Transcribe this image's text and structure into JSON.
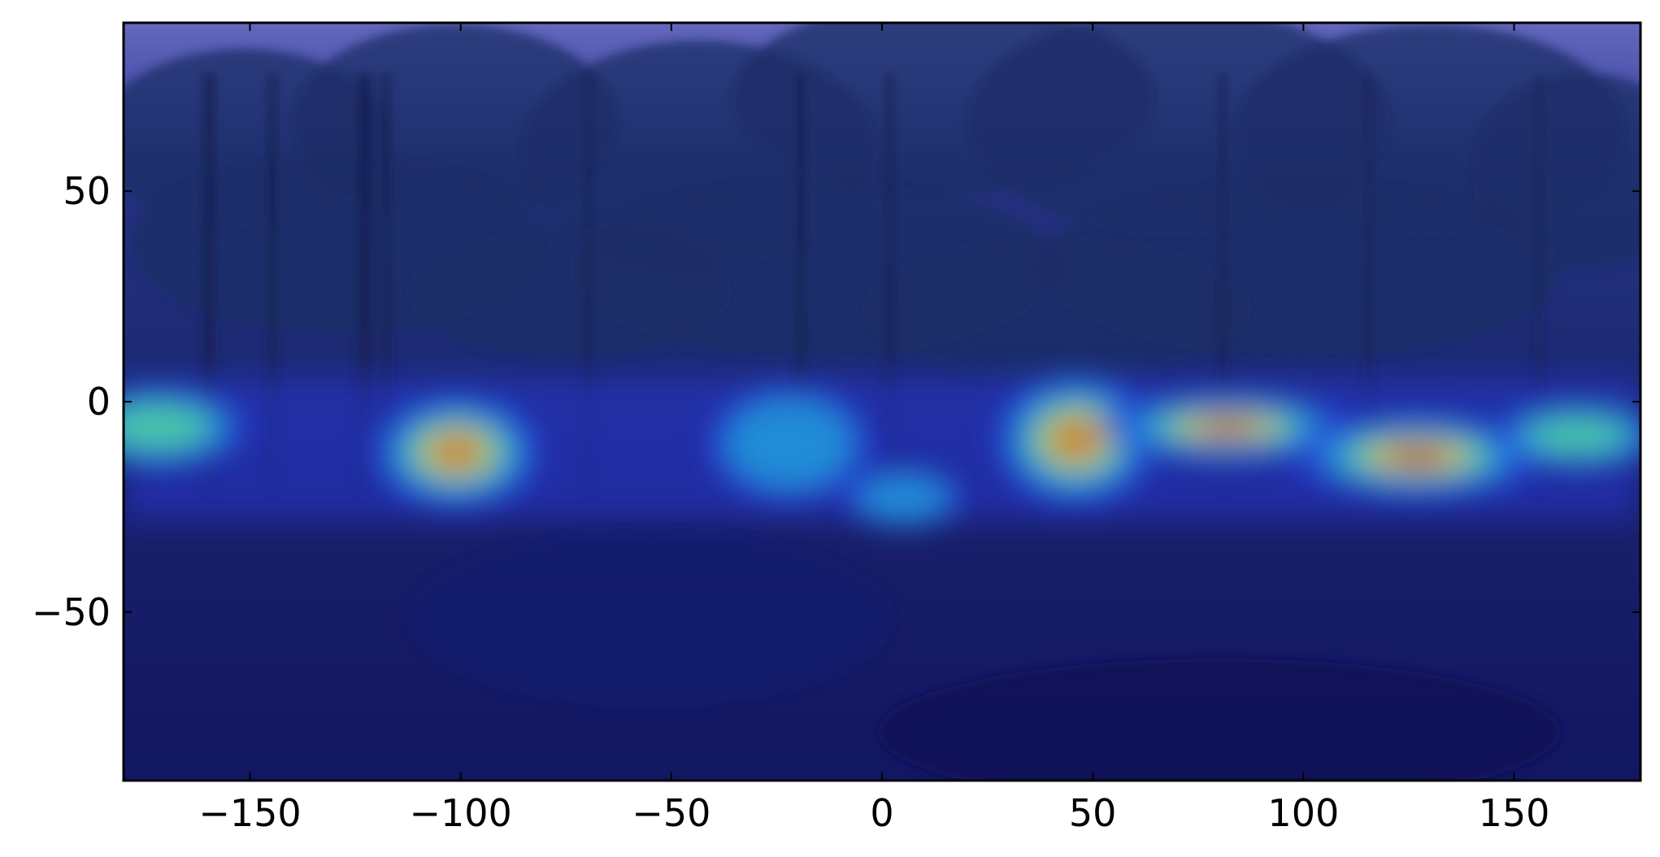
{
  "chart_data": {
    "type": "heatmap",
    "title": "",
    "xlabel": "",
    "ylabel": "",
    "xlim": [
      -180,
      180
    ],
    "ylim": [
      -90,
      90
    ],
    "x_ticks": [
      -150,
      -100,
      -50,
      0,
      50,
      100,
      150
    ],
    "y_ticks": [
      50,
      0,
      -50
    ],
    "x_tick_labels": [
      "−150",
      "−100",
      "−50",
      "0",
      "50",
      "100",
      "150"
    ],
    "y_tick_labels": [
      "50",
      "0",
      "−50"
    ],
    "grid": false,
    "colormap": "jet",
    "background": "equirectangular 360° photo of a forest clearing overlaid with a saliency heatmap",
    "hotspots": [
      {
        "lon": -172,
        "lat": -6,
        "spread_lon": 14,
        "spread_lat": 6,
        "intensity": 0.55
      },
      {
        "lon": -101,
        "lat": -12,
        "spread_lon": 12,
        "spread_lat": 8,
        "intensity": 0.75
      },
      {
        "lon": -22,
        "lat": -10,
        "spread_lon": 14,
        "spread_lat": 10,
        "intensity": 0.35
      },
      {
        "lon": 5,
        "lat": -23,
        "spread_lon": 10,
        "spread_lat": 5,
        "intensity": 0.35
      },
      {
        "lon": 46,
        "lat": -9,
        "spread_lon": 11,
        "spread_lat": 9,
        "intensity": 0.85
      },
      {
        "lon": 82,
        "lat": -6,
        "spread_lon": 16,
        "spread_lat": 4,
        "intensity": 1.0
      },
      {
        "lon": 127,
        "lat": -13,
        "spread_lon": 16,
        "spread_lat": 5,
        "intensity": 1.0
      },
      {
        "lon": 165,
        "lat": -8,
        "spread_lon": 14,
        "spread_lat": 5,
        "intensity": 0.45
      }
    ]
  },
  "colors": {
    "overlay_base": "#1c1f8c",
    "axis_frame": "#000000",
    "sky_tint": "#6a6fc4",
    "foliage_tint": "#1c2a68",
    "ground_tint": "#141a5c"
  }
}
